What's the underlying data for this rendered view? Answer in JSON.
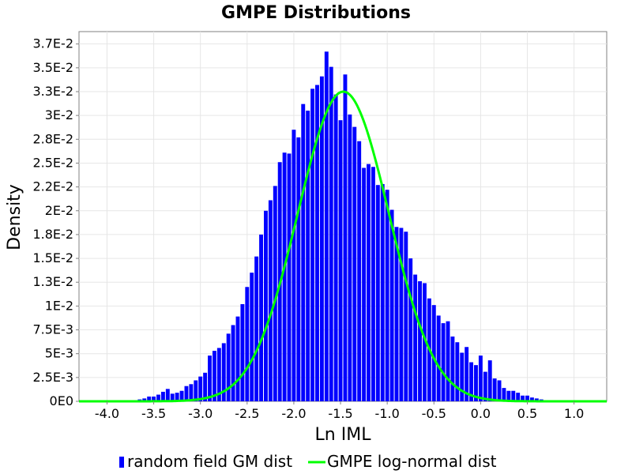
{
  "chart_data": {
    "type": "bar",
    "title": "GMPE Distributions",
    "xlabel": "Ln IML",
    "ylabel": "Density",
    "xlim": [
      -4.3,
      1.35
    ],
    "ylim": [
      0,
      0.0388
    ],
    "grid": true,
    "legend_placement": "bottom",
    "x_ticks": [
      -4.0,
      -3.5,
      -3.0,
      -2.5,
      -2.0,
      -1.5,
      -1.0,
      -0.5,
      0.0,
      0.5,
      1.0
    ],
    "x_tick_labels": [
      "-4.0",
      "-3.5",
      "-3.0",
      "-2.5",
      "-2.0",
      "-1.5",
      "-1.0",
      "-0.5",
      "0.0",
      "0.5",
      "1.0"
    ],
    "y_ticks": [
      0,
      0.0025,
      0.005,
      0.0075,
      0.01,
      0.0125,
      0.015,
      0.0175,
      0.02,
      0.0225,
      0.025,
      0.0275,
      0.03,
      0.0325,
      0.035,
      0.0375
    ],
    "y_tick_labels": [
      "0E0",
      "2.5E-3",
      "5E-3",
      "7.5E-3",
      "1E-2",
      "1.3E-2",
      "1.5E-2",
      "1.8E-2",
      "2E-2",
      "2.2E-2",
      "2.5E-2",
      "2.8E-2",
      "3E-2",
      "3.3E-2",
      "3.5E-2",
      "3.7E-2"
    ],
    "series": [
      {
        "name": "random field GM dist",
        "kind": "histogram",
        "color": "#0000ff",
        "bin_width": 0.05,
        "x": [
          -3.7,
          -3.65,
          -3.6,
          -3.55,
          -3.5,
          -3.45,
          -3.4,
          -3.35,
          -3.3,
          -3.25,
          -3.2,
          -3.15,
          -3.1,
          -3.05,
          -3.0,
          -2.95,
          -2.9,
          -2.85,
          -2.8,
          -2.75,
          -2.7,
          -2.65,
          -2.6,
          -2.55,
          -2.5,
          -2.45,
          -2.4,
          -2.35,
          -2.3,
          -2.25,
          -2.2,
          -2.15,
          -2.1,
          -2.05,
          -2.0,
          -1.95,
          -1.9,
          -1.85,
          -1.8,
          -1.75,
          -1.7,
          -1.65,
          -1.6,
          -1.55,
          -1.5,
          -1.45,
          -1.4,
          -1.35,
          -1.3,
          -1.25,
          -1.2,
          -1.15,
          -1.1,
          -1.05,
          -1.0,
          -0.95,
          -0.9,
          -0.85,
          -0.8,
          -0.75,
          -0.7,
          -0.65,
          -0.6,
          -0.55,
          -0.5,
          -0.45,
          -0.4,
          -0.35,
          -0.3,
          -0.25,
          -0.2,
          -0.15,
          -0.1,
          -0.05,
          0.0,
          0.05,
          0.1,
          0.15,
          0.2,
          0.25,
          0.3,
          0.35,
          0.4,
          0.45,
          0.5,
          0.55,
          0.6,
          0.65,
          0.7,
          0.75
        ],
        "values": [
          0.0001,
          0.0002,
          0.0003,
          0.0005,
          0.0005,
          0.0007,
          0.001,
          0.0013,
          0.0008,
          0.0009,
          0.0011,
          0.0016,
          0.0018,
          0.0022,
          0.0026,
          0.003,
          0.0048,
          0.0053,
          0.0056,
          0.0061,
          0.0071,
          0.008,
          0.0089,
          0.0102,
          0.012,
          0.0135,
          0.0152,
          0.0175,
          0.02,
          0.0211,
          0.0226,
          0.0251,
          0.0261,
          0.026,
          0.0285,
          0.0277,
          0.0312,
          0.0305,
          0.0328,
          0.0332,
          0.0341,
          0.0367,
          0.0351,
          0.0322,
          0.0295,
          0.0343,
          0.0301,
          0.0288,
          0.0273,
          0.0245,
          0.0249,
          0.0246,
          0.0227,
          0.0228,
          0.0222,
          0.0201,
          0.0183,
          0.0182,
          0.0178,
          0.015,
          0.0133,
          0.0126,
          0.0124,
          0.0108,
          0.0101,
          0.009,
          0.0082,
          0.0084,
          0.0068,
          0.0062,
          0.0051,
          0.0057,
          0.0041,
          0.0038,
          0.0048,
          0.0031,
          0.0043,
          0.0024,
          0.0022,
          0.0014,
          0.0011,
          0.0011,
          0.0009,
          0.0006,
          0.0006,
          0.0004,
          0.0003,
          0.0002,
          0.0001,
          0.0001
        ]
      },
      {
        "name": "GMPE log-normal dist",
        "kind": "line",
        "color": "#00ff00",
        "mean": -1.47,
        "std": 0.488,
        "peak_density": 0.0325
      }
    ],
    "legend": [
      {
        "label": "random field GM dist",
        "color": "#0000ff",
        "marker": "bar"
      },
      {
        "label": "GMPE log-normal dist",
        "color": "#00ff00",
        "marker": "line"
      }
    ]
  }
}
